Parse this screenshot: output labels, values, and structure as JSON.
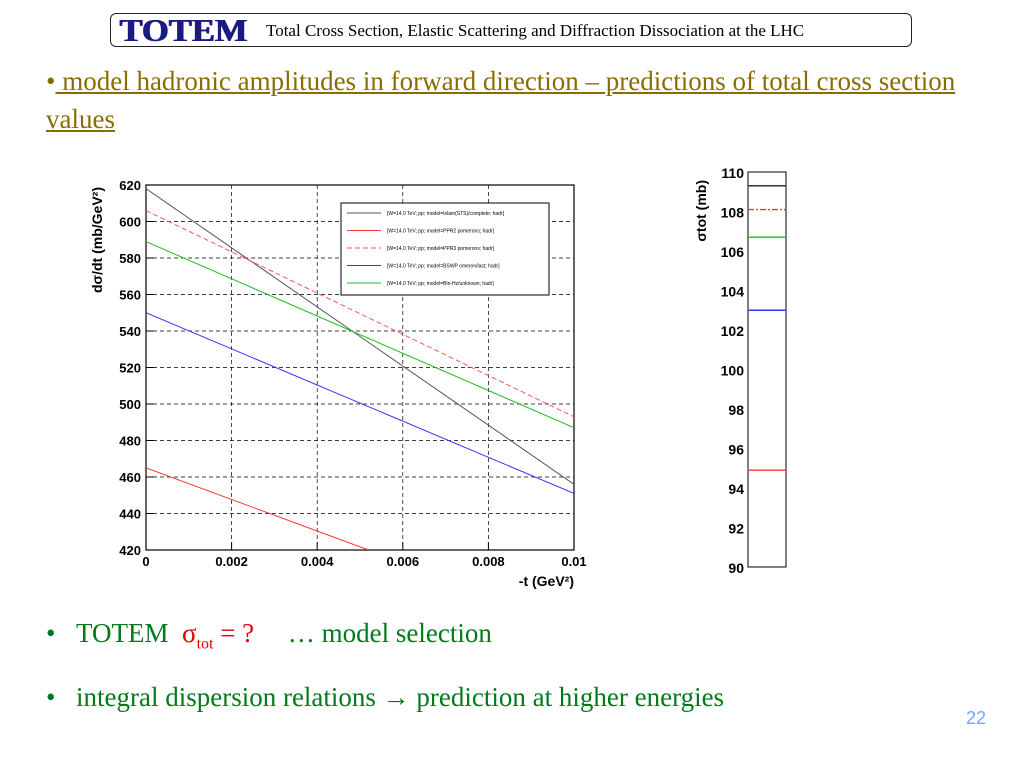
{
  "header": {
    "logo": "TOTEM",
    "title": "Total Cross Section, Elastic Scattering and Diffraction Dissociation at the LHC"
  },
  "main_bullet": {
    "bullet": "•",
    "text": " model hadronic amplitudes in forward direction – predictions of total cross section values"
  },
  "bullets": [
    {
      "prefix": "TOTEM",
      "sigma": "σ",
      "sub": "tot",
      "eq": " = ?",
      "suffix": "… model selection"
    },
    {
      "text": "integral dispersion relations → prediction at higher energies"
    }
  ],
  "page_number": "22",
  "colors": {
    "black": "#555555",
    "red": "#ff3333",
    "blue": "#3333ff",
    "green": "#22bb22",
    "bullet_green": "#007a1a",
    "title_gold": "#8a6d00"
  },
  "chart_data": [
    {
      "type": "line",
      "xlabel": "-t  (GeV²)",
      "ylabel": "dσ/dt   (mb/GeV²)",
      "xlim": [
        0,
        0.01
      ],
      "ylim": [
        420,
        620
      ],
      "xticks": [
        "0",
        "0.002",
        "0.004",
        "0.006",
        "0.008",
        "0.01"
      ],
      "yticks": [
        "420",
        "440",
        "460",
        "480",
        "500",
        "520",
        "540",
        "560",
        "580",
        "600",
        "620"
      ],
      "grid": true,
      "legend_position": "top-right",
      "series": [
        {
          "name": "[W=14.0 TeV; pp; model=Islam(STS)/complete; hadr]",
          "color": "#555555",
          "dash": "solid",
          "x": [
            0,
            0.01
          ],
          "y": [
            618,
            456
          ]
        },
        {
          "name": "[W=14.0 TeV; pp; model=PPR2 pomerons; hadr]",
          "color": "#ff3333",
          "dash": "solid",
          "x": [
            0,
            0.0052
          ],
          "y": [
            465,
            420
          ]
        },
        {
          "name": "[W=14.0 TeV; pp; model=PPR3 pomerons; hadr]",
          "color": "#ff5555",
          "dash": "dashed",
          "x": [
            0,
            0.01
          ],
          "y": [
            606,
            493
          ]
        },
        {
          "name": "[W=14.0 TeV; pp; model=BSWP omeron/last; hadr]",
          "color": "#3333ff",
          "dash": "solid",
          "x": [
            0,
            0.01
          ],
          "y": [
            550,
            451
          ]
        },
        {
          "name": "[W=14.0 TeV; pp; model=Bln-Hz/unknown; hadr]",
          "color": "#22bb22",
          "dash": "solid",
          "x": [
            0,
            0.01
          ],
          "y": [
            589,
            487
          ]
        }
      ]
    },
    {
      "type": "bar",
      "ylabel": "σtot   (mb)",
      "ylim": [
        90,
        110
      ],
      "yticks": [
        "90",
        "92",
        "94",
        "96",
        "98",
        "100",
        "102",
        "104",
        "106",
        "108",
        "110"
      ],
      "levels": [
        {
          "value": 109.3,
          "color": "#222222",
          "dash": "solid"
        },
        {
          "value": 108.1,
          "color": "#ff3333",
          "dash": "dashdot"
        },
        {
          "value": 106.7,
          "color": "#22bb22",
          "dash": "solid"
        },
        {
          "value": 103.0,
          "color": "#3333ff",
          "dash": "solid"
        },
        {
          "value": 94.9,
          "color": "#ff3333",
          "dash": "solid"
        }
      ]
    }
  ]
}
